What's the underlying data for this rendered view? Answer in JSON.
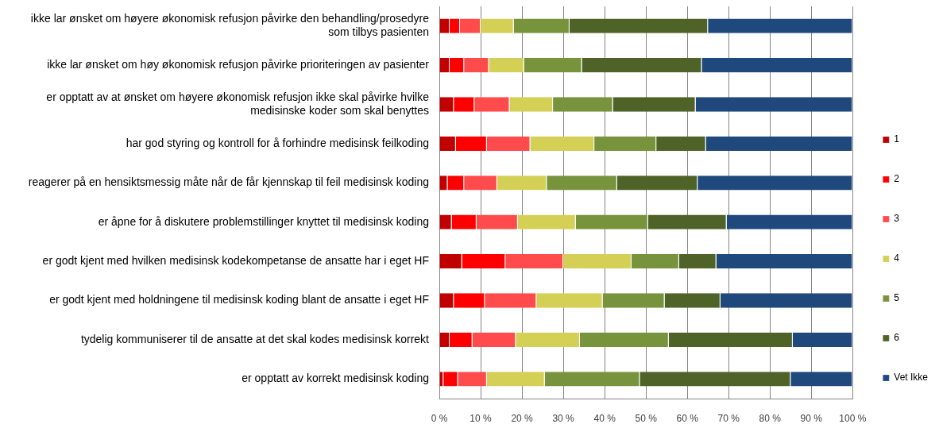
{
  "chart_data": {
    "type": "bar",
    "orientation": "horizontal",
    "stacked": true,
    "categories": [
      "ikke lar ønsket om høyere økonomisk refusjon påvirke den behandling/prosedyre som tilbys pasienten",
      "ikke lar ønsket om høy økonomisk refusjon påvirke prioriteringen av pasienter",
      "er opptatt av at ønsket om høyere økonomisk refusjon ikke skal påvirke hvilke medisinske koder som skal benyttes",
      "har god styring og kontroll for å forhindre medisinsk feilkoding",
      "reagerer på en hensiktsmessig måte når de får kjennskap til feil medisinsk koding",
      "er åpne for å diskutere problemstillinger knyttet til medisinsk koding",
      "er godt kjent med hvilken medisinsk kodekompetanse de ansatte har i eget HF",
      "er godt kjent med holdningene til medisinsk koding blant de ansatte i eget HF",
      "tydelig kommuniserer til de ansatte at det skal kodes medisinsk korrekt",
      "er opptatt av korrekt medisinsk koding"
    ],
    "series": [
      {
        "name": "1",
        "color": "#c00000",
        "values": [
          2.5,
          2.5,
          3.5,
          4,
          2,
          3,
          5.5,
          3.5,
          2.5,
          1
        ]
      },
      {
        "name": "2",
        "color": "#ff0000",
        "values": [
          2.5,
          3.5,
          5,
          7.5,
          4,
          6,
          10.5,
          7.5,
          5.5,
          3.5
        ]
      },
      {
        "name": "3",
        "color": "#ff4b4b",
        "values": [
          5,
          6,
          8.5,
          10.5,
          8,
          10,
          14,
          12.5,
          10.5,
          7
        ]
      },
      {
        "name": "4",
        "color": "#d4cf55",
        "values": [
          8,
          8.5,
          10.5,
          15.5,
          12,
          14,
          16.5,
          16,
          15.5,
          14
        ]
      },
      {
        "name": "5",
        "color": "#77933c",
        "values": [
          13.5,
          14,
          14.5,
          15,
          17,
          17.5,
          11.5,
          15,
          21.5,
          23
        ]
      },
      {
        "name": "6",
        "color": "#4f6228",
        "values": [
          33.5,
          29,
          20,
          12,
          19.5,
          19,
          9,
          13.5,
          30,
          36.5
        ]
      },
      {
        "name": "Vet Ikke",
        "color": "#1f497d",
        "values": [
          35,
          36.5,
          38,
          35.5,
          37.5,
          30.5,
          33,
          32,
          14.5,
          15
        ]
      }
    ],
    "xlim": [
      0,
      100
    ],
    "xticks": [
      {
        "value": 0,
        "label": "0 %"
      },
      {
        "value": 10,
        "label": "10 %"
      },
      {
        "value": 20,
        "label": "20 %"
      },
      {
        "value": 30,
        "label": "30 %"
      },
      {
        "value": 40,
        "label": "40 %"
      },
      {
        "value": 50,
        "label": "50 %"
      },
      {
        "value": 60,
        "label": "60 %"
      },
      {
        "value": 70,
        "label": "70 %"
      },
      {
        "value": 80,
        "label": "80 %"
      },
      {
        "value": 90,
        "label": "90 %"
      },
      {
        "value": 100,
        "label": "100 %"
      }
    ],
    "grid": "x",
    "legend": "right"
  }
}
